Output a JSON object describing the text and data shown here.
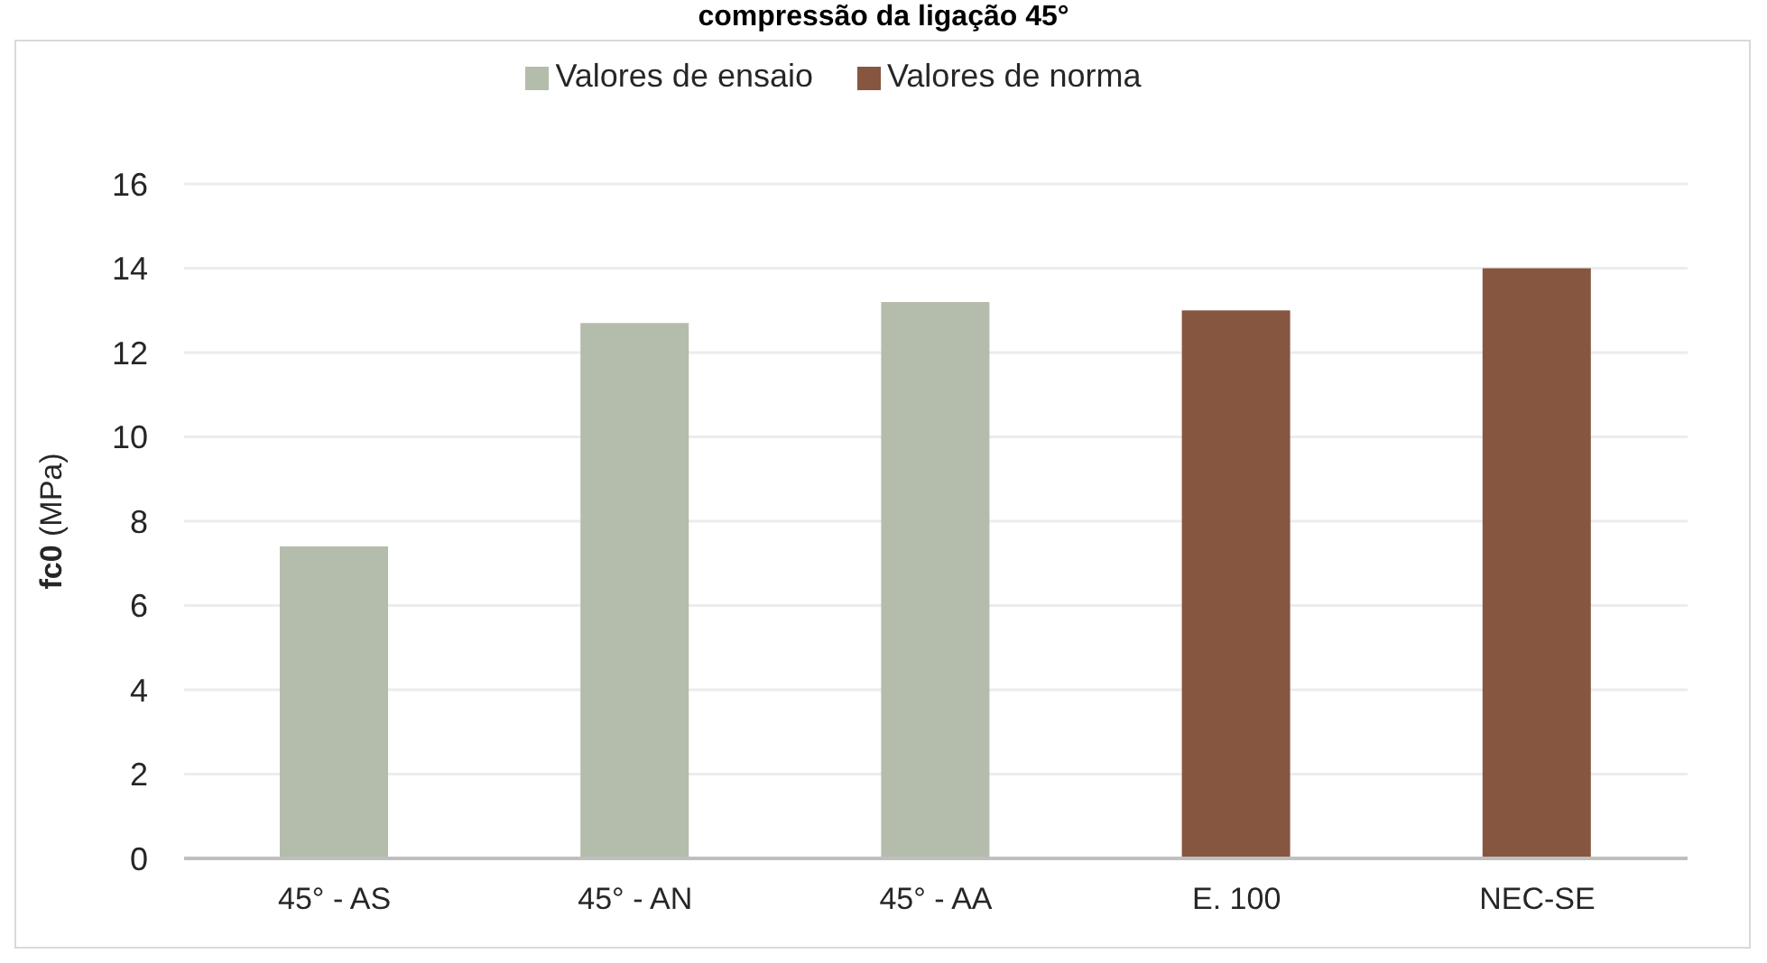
{
  "chart_data": {
    "type": "bar",
    "title": "compressão da ligação 45°",
    "ylabel": "fc0 (MPa)",
    "categories": [
      "45° - AS",
      "45° - AN",
      "45° - AA",
      "E. 100",
      "NEC-SE"
    ],
    "series": [
      {
        "name": "Valores de ensaio",
        "color": "#b4bcab",
        "values": [
          7.4,
          12.7,
          13.2,
          null,
          null
        ]
      },
      {
        "name": "Valores de norma",
        "color": "#865641",
        "values": [
          null,
          null,
          null,
          13.0,
          14.0
        ]
      }
    ],
    "stacked": true,
    "ylim": [
      0,
      16
    ],
    "yticks": [
      0,
      2,
      4,
      6,
      8,
      10,
      12,
      14,
      16
    ],
    "grid": "y",
    "legend": "top"
  }
}
